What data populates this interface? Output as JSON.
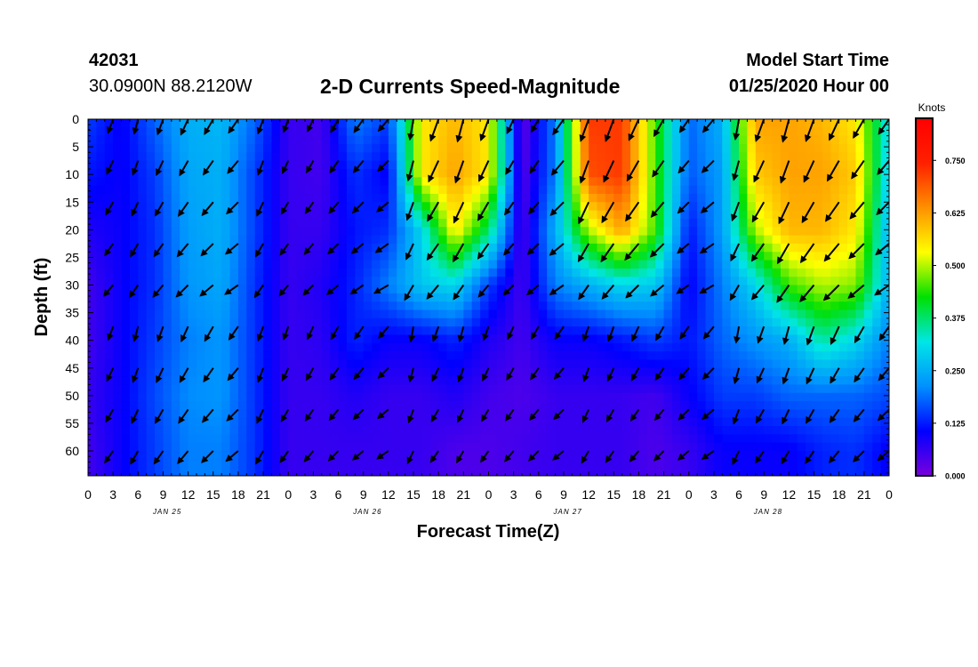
{
  "header": {
    "station_id": "42031",
    "coords": "30.0900N 88.2120W",
    "title": "2-D Currents Speed-Magnitude",
    "start_label": "Model Start Time",
    "start_value": "01/25/2020 Hour 00"
  },
  "chart_data": {
    "type": "heatmap",
    "title": "2-D Currents Speed-Magnitude",
    "xlabel": "Forecast Time(Z)",
    "ylabel": "Depth (ft)",
    "x_unit": "hours since model start",
    "xlim": [
      0,
      96
    ],
    "ylim": [
      0,
      64.5
    ],
    "y_inverted": true,
    "x_ticks": [
      0,
      3,
      6,
      9,
      12,
      15,
      18,
      21,
      24,
      27,
      30,
      33,
      36,
      39,
      42,
      45,
      48,
      51,
      54,
      57,
      60,
      63,
      66,
      69,
      72,
      75,
      78,
      81,
      84,
      87,
      90,
      93,
      96
    ],
    "x_tick_labels": [
      "0",
      "3",
      "6",
      "9",
      "12",
      "15",
      "18",
      "21",
      "0",
      "3",
      "6",
      "9",
      "12",
      "15",
      "18",
      "21",
      "0",
      "3",
      "6",
      "9",
      "12",
      "15",
      "18",
      "21",
      "0",
      "3",
      "6",
      "9",
      "12",
      "15",
      "18",
      "21",
      "0"
    ],
    "date_labels": [
      {
        "x": 9.5,
        "label": "JAN 25"
      },
      {
        "x": 33.5,
        "label": "JAN 26"
      },
      {
        "x": 57.5,
        "label": "JAN 27"
      },
      {
        "x": 81.5,
        "label": "JAN 28"
      }
    ],
    "y_ticks": [
      0,
      5,
      10,
      15,
      20,
      25,
      30,
      35,
      40,
      45,
      50,
      55,
      60
    ],
    "colorbar": {
      "label": "Knots",
      "min": 0,
      "max": 0.85,
      "ticks": [
        0.0,
        0.125,
        0.25,
        0.375,
        0.5,
        0.625,
        0.75
      ],
      "tick_labels": [
        "0.000",
        "0.125",
        "0.250",
        "0.375",
        "0.500",
        "0.625",
        "0.750"
      ],
      "colormap": [
        "#7a00dd",
        "#0000ff",
        "#0090ff",
        "#00e6e6",
        "#00e000",
        "#ffff00",
        "#ff9000",
        "#ff2000",
        "#ff0000"
      ]
    },
    "speed_grid": {
      "times": [
        0,
        4,
        8,
        12,
        16,
        20,
        24,
        28,
        32,
        36,
        40,
        44,
        48,
        52,
        56,
        60,
        64,
        68,
        72,
        76,
        80,
        84,
        88,
        92,
        96
      ],
      "depths": [
        0,
        10,
        20,
        30,
        40,
        50,
        60
      ],
      "rows": [
        [
          0.15,
          0.1,
          0.18,
          0.25,
          0.26,
          0.18,
          0.06,
          0.05,
          0.2,
          0.15,
          0.55,
          0.6,
          0.55,
          0.02,
          0.2,
          0.72,
          0.72,
          0.45,
          0.18,
          0.25,
          0.62,
          0.62,
          0.6,
          0.55,
          0.3
        ],
        [
          0.12,
          0.1,
          0.15,
          0.24,
          0.25,
          0.15,
          0.06,
          0.05,
          0.14,
          0.1,
          0.55,
          0.62,
          0.55,
          0.03,
          0.2,
          0.7,
          0.72,
          0.45,
          0.17,
          0.23,
          0.58,
          0.62,
          0.62,
          0.58,
          0.28
        ],
        [
          0.08,
          0.1,
          0.14,
          0.23,
          0.25,
          0.15,
          0.06,
          0.06,
          0.12,
          0.14,
          0.3,
          0.55,
          0.38,
          0.04,
          0.25,
          0.5,
          0.62,
          0.45,
          0.12,
          0.23,
          0.5,
          0.6,
          0.6,
          0.55,
          0.25
        ],
        [
          0.05,
          0.1,
          0.14,
          0.22,
          0.24,
          0.14,
          0.06,
          0.08,
          0.13,
          0.2,
          0.28,
          0.3,
          0.15,
          0.05,
          0.2,
          0.25,
          0.3,
          0.28,
          0.1,
          0.2,
          0.3,
          0.45,
          0.5,
          0.48,
          0.25
        ],
        [
          0.05,
          0.1,
          0.15,
          0.2,
          0.22,
          0.14,
          0.06,
          0.07,
          0.13,
          0.1,
          0.1,
          0.13,
          0.08,
          0.05,
          0.1,
          0.1,
          0.12,
          0.15,
          0.12,
          0.18,
          0.22,
          0.25,
          0.35,
          0.3,
          0.2
        ],
        [
          0.06,
          0.1,
          0.16,
          0.21,
          0.22,
          0.14,
          0.06,
          0.06,
          0.08,
          0.06,
          0.06,
          0.08,
          0.05,
          0.04,
          0.06,
          0.06,
          0.06,
          0.05,
          0.1,
          0.15,
          0.15,
          0.18,
          0.18,
          0.18,
          0.16
        ],
        [
          0.05,
          0.1,
          0.15,
          0.2,
          0.2,
          0.14,
          0.06,
          0.06,
          0.06,
          0.06,
          0.06,
          0.04,
          0.04,
          0.05,
          0.06,
          0.06,
          0.06,
          0.04,
          0.06,
          0.1,
          0.1,
          0.1,
          0.13,
          0.14,
          0.1
        ]
      ]
    },
    "vector_time_step": 3,
    "vector_depths": [
      0,
      7.5,
      15,
      22.5,
      30,
      37.5,
      45,
      52.5,
      60
    ],
    "vector_directions_deg": [
      [
        190,
        200,
        195,
        200,
        205,
        210,
        215,
        200,
        200,
        205,
        210,
        215,
        220
      ],
      [
        195,
        205,
        200,
        205,
        210,
        215,
        220,
        200,
        205,
        210,
        215,
        220,
        225
      ],
      [
        200,
        210,
        205,
        210,
        215,
        220,
        225,
        205,
        210,
        215,
        220,
        225,
        230
      ],
      [
        205,
        215,
        210,
        215,
        220,
        225,
        230,
        210,
        215,
        220,
        225,
        230,
        235
      ],
      [
        210,
        220,
        215,
        220,
        225,
        230,
        235,
        215,
        220,
        225,
        230,
        235,
        240
      ]
    ]
  }
}
